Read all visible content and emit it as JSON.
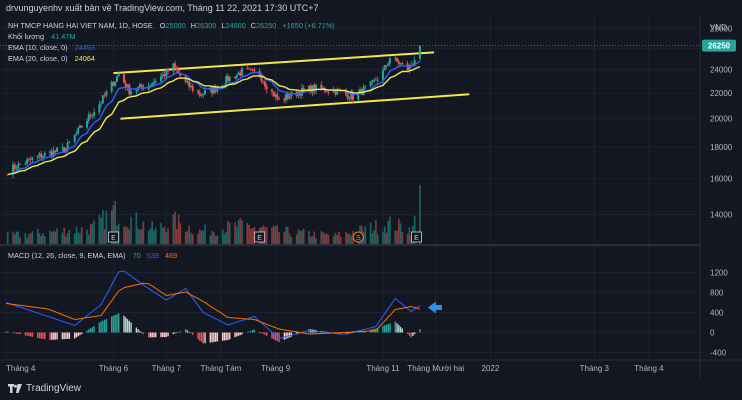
{
  "header": {
    "publisher": "drvunguyenhv xuất bản về TradingView.com, Tháng 11 22, 2021 17:30 UTC+7"
  },
  "legend": {
    "symbol": "NH TMCP HANG HAI VIET NAM, 1D, HOSE",
    "ohlc": [
      {
        "key": "O",
        "value": "25000"
      },
      {
        "key": "H",
        "value": "26300"
      },
      {
        "key": "L",
        "value": "24800"
      },
      {
        "key": "C",
        "value": "26250"
      }
    ],
    "change": "+1650 (+6.71%)",
    "volume_label": "Khối lượng",
    "volume_value": "41.47M",
    "ema10_label": "EMA (10, close, 0)",
    "ema10_value": "24493",
    "ema20_label": "EMA (20, close, 0)",
    "ema20_value": "24064",
    "macd_label": "MACD (12, 26, close, 9, EMA, EMA)",
    "macd_values": [
      "70",
      "539",
      "469"
    ]
  },
  "colors": {
    "up": "#26a69a",
    "down": "#ef5350",
    "ema10": "#2962ff",
    "ema20": "#f5e64b",
    "channel": "#f5e64b",
    "macd": "#2962ff",
    "signal": "#ff6d00",
    "price_tag": "#26a69a",
    "arrow": "#2196f3",
    "earnings": "#cfd2d9",
    "dividend": "#f57f17"
  },
  "price_axis": {
    "currency": "VND",
    "ticks": [
      "28000",
      "26000",
      "24000",
      "22000",
      "20000",
      "18000",
      "16000",
      "14000"
    ],
    "last_price": "26250"
  },
  "macd_axis": {
    "ticks": [
      "1200",
      "800",
      "400",
      "0",
      "-400"
    ]
  },
  "time_axis": {
    "labels": [
      "Tháng 4",
      "Tháng 6",
      "Tháng 7",
      "Tháng Tám",
      "Tháng 9",
      "Tháng 11",
      "Tháng Mười hai",
      "2022",
      "Tháng 3",
      "Tháng 4"
    ]
  },
  "markers": {
    "earnings_glyph": "E",
    "dividend_glyph": "S"
  },
  "footer": {
    "brand": "TradingView"
  },
  "chart_data": {
    "type": "candlestick",
    "symbol": "NH TMCP HANG HAI VIET NAM",
    "interval": "1D",
    "exchange": "HOSE",
    "currency": "VND",
    "price_range": [
      12500,
      29200
    ],
    "price_scale": "log",
    "macd_range": [
      -550,
      1450
    ],
    "time_range": [
      "2021-04-01",
      "2022-04-30"
    ],
    "grid": true,
    "ohlc_anchors": [
      {
        "date": "2021-04-02",
        "close": 16500
      },
      {
        "date": "2021-04-20",
        "close": 17400
      },
      {
        "date": "2021-05-05",
        "close": 17900
      },
      {
        "date": "2021-05-15",
        "close": 19600
      },
      {
        "date": "2021-05-25",
        "close": 21300
      },
      {
        "date": "2021-06-01",
        "close": 22900
      },
      {
        "date": "2021-06-04",
        "close": 23600
      },
      {
        "date": "2021-06-10",
        "close": 22200
      },
      {
        "date": "2021-06-20",
        "close": 22600
      },
      {
        "date": "2021-06-30",
        "close": 23600
      },
      {
        "date": "2021-07-05",
        "close": 24300
      },
      {
        "date": "2021-07-12",
        "close": 22800
      },
      {
        "date": "2021-07-20",
        "close": 21900
      },
      {
        "date": "2021-07-28",
        "close": 22300
      },
      {
        "date": "2021-08-05",
        "close": 23200
      },
      {
        "date": "2021-08-14",
        "close": 23900
      },
      {
        "date": "2021-08-23",
        "close": 23600
      },
      {
        "date": "2021-08-28",
        "close": 22400
      },
      {
        "date": "2021-09-03",
        "close": 21400
      },
      {
        "date": "2021-09-12",
        "close": 22000
      },
      {
        "date": "2021-09-22",
        "close": 22400
      },
      {
        "date": "2021-10-05",
        "close": 22200
      },
      {
        "date": "2021-10-15",
        "close": 21700
      },
      {
        "date": "2021-10-25",
        "close": 22600
      },
      {
        "date": "2021-11-01",
        "close": 23800
      },
      {
        "date": "2021-11-05",
        "close": 25100
      },
      {
        "date": "2021-11-10",
        "close": 24600
      },
      {
        "date": "2021-11-15",
        "close": 24100
      },
      {
        "date": "2021-11-18",
        "close": 24600
      },
      {
        "date": "2021-11-22",
        "close": 26250
      }
    ],
    "last_bar": {
      "date": "2021-11-22",
      "open": 25000,
      "high": 26300,
      "low": 24800,
      "close": 26250,
      "volume": "41.47M"
    },
    "volume_anchors": [
      {
        "date": "2021-04-02",
        "volume": 6
      },
      {
        "date": "2021-05-20",
        "volume": 11
      },
      {
        "date": "2021-06-01",
        "volume": 22
      },
      {
        "date": "2021-06-25",
        "volume": 10
      },
      {
        "date": "2021-07-05",
        "volume": 16
      },
      {
        "date": "2021-07-20",
        "volume": 9
      },
      {
        "date": "2021-08-14",
        "volume": 13
      },
      {
        "date": "2021-09-03",
        "volume": 9
      },
      {
        "date": "2021-10-05",
        "volume": 6
      },
      {
        "date": "2021-11-05",
        "volume": 14
      },
      {
        "date": "2021-11-18",
        "volume": 10
      },
      {
        "date": "2021-11-22",
        "volume": 41.47
      }
    ],
    "ema": [
      {
        "name": "EMA (10, close, 0)",
        "last": 24493
      },
      {
        "name": "EMA (20, close, 0)",
        "last": 24064
      }
    ],
    "channel": [
      {
        "line": "upper",
        "from": {
          "date": "2021-06-01",
          "price": 23700
        },
        "to": {
          "date": "2021-11-30",
          "price": 25600
        }
      },
      {
        "line": "lower",
        "from": {
          "date": "2021-06-05",
          "price": 20000
        },
        "to": {
          "date": "2021-12-20",
          "price": 21900
        }
      }
    ],
    "event_markers": [
      {
        "date": "2021-06-01",
        "kind": "earnings"
      },
      {
        "date": "2021-08-23",
        "kind": "earnings"
      },
      {
        "date": "2021-10-18",
        "kind": "dividend"
      },
      {
        "date": "2021-11-20",
        "kind": "earnings"
      }
    ],
    "macd": {
      "params": "12, 26, close, 9, EMA, EMA",
      "last": {
        "histogram": 70,
        "macd": 539,
        "signal": 469
      },
      "anchors": [
        {
          "date": "2021-04-01",
          "macd": 600,
          "signal": 580
        },
        {
          "date": "2021-04-25",
          "macd": 320,
          "signal": 470
        },
        {
          "date": "2021-05-10",
          "macd": 140,
          "signal": 260
        },
        {
          "date": "2021-05-25",
          "macd": 560,
          "signal": 340
        },
        {
          "date": "2021-06-05",
          "macd": 1280,
          "signal": 880
        },
        {
          "date": "2021-06-20",
          "macd": 900,
          "signal": 1000
        },
        {
          "date": "2021-07-01",
          "macd": 650,
          "signal": 740
        },
        {
          "date": "2021-07-12",
          "macd": 880,
          "signal": 810
        },
        {
          "date": "2021-07-22",
          "macd": 400,
          "signal": 620
        },
        {
          "date": "2021-08-05",
          "macd": 150,
          "signal": 300
        },
        {
          "date": "2021-08-20",
          "macd": 320,
          "signal": 260
        },
        {
          "date": "2021-09-03",
          "macd": -120,
          "signal": 70
        },
        {
          "date": "2021-09-20",
          "macd": 40,
          "signal": -30
        },
        {
          "date": "2021-10-10",
          "macd": -40,
          "signal": 0
        },
        {
          "date": "2021-10-28",
          "macd": 120,
          "signal": 40
        },
        {
          "date": "2021-11-08",
          "macd": 680,
          "signal": 460
        },
        {
          "date": "2021-11-17",
          "macd": 420,
          "signal": 520
        },
        {
          "date": "2021-11-22",
          "macd": 539,
          "signal": 469
        }
      ]
    }
  }
}
